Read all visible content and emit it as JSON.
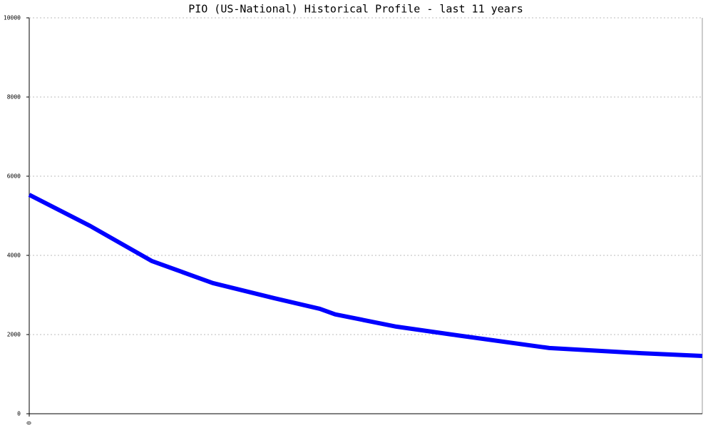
{
  "chart_data": {
    "type": "line",
    "title": "PIO (US-National) Historical Profile - last 11 years",
    "x": [
      0,
      1,
      2,
      3,
      4,
      4.75,
      5,
      6,
      7,
      8.5,
      10,
      11
    ],
    "series": [
      {
        "color": "#0000ff",
        "values": [
          5530,
          4740,
          3860,
          3300,
          2920,
          2650,
          2510,
          2200,
          1980,
          1660,
          1530,
          1460
        ]
      }
    ],
    "xlim": [
      0,
      11
    ],
    "xticks": [
      0
    ],
    "ylim": [
      0,
      10000
    ],
    "yticks": [
      0,
      2000,
      4000,
      6000,
      8000,
      10000
    ],
    "grid": true
  }
}
